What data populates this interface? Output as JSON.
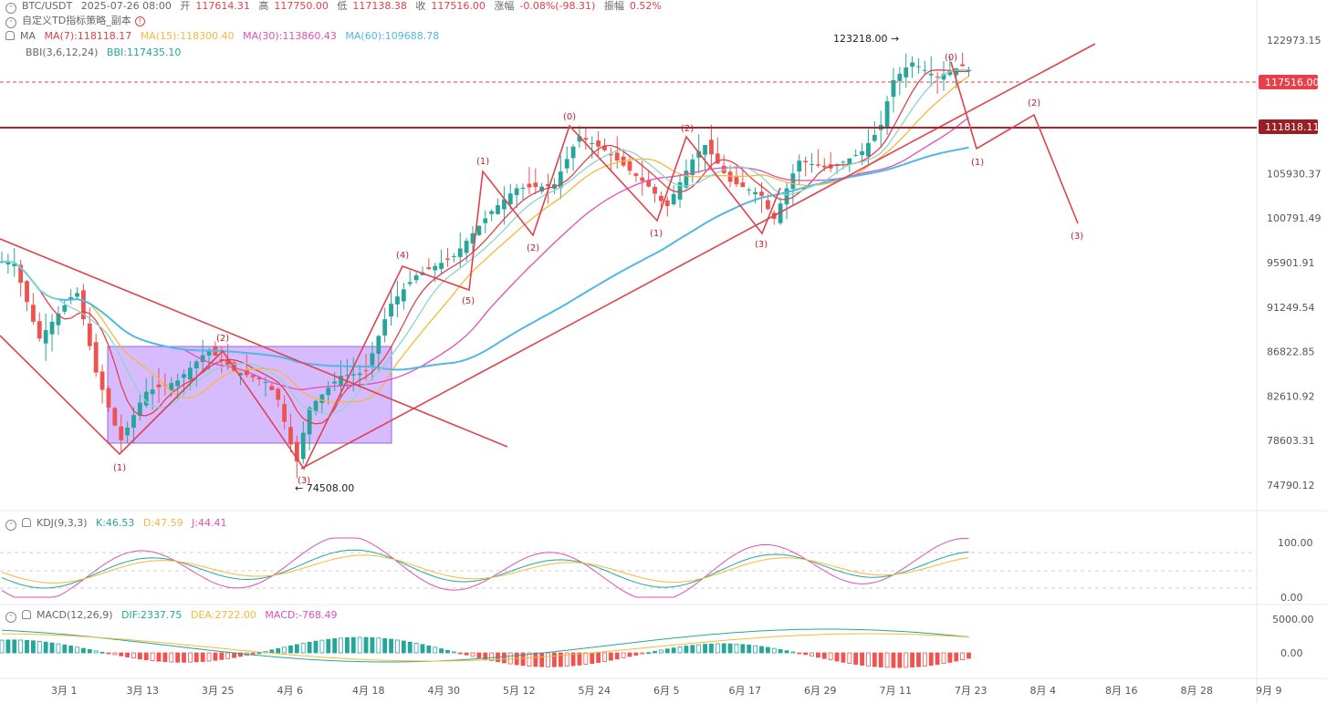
{
  "header": {
    "symbol_line": {
      "symbol": "BTC/USDT",
      "datetime": "2025-07-26 08:00",
      "open_label": "开",
      "open": "117614.31",
      "high_label": "高",
      "high": "117750.00",
      "low_label": "低",
      "low": "117138.38",
      "close_label": "收",
      "close": "117516.00",
      "change_label": "涨幅",
      "change": "-0.08%(-98.31)",
      "amplitude_label": "振幅",
      "amplitude": "0.52%"
    },
    "strategy": "自定义TD指标策略_副本",
    "ma_line": {
      "name": "MA",
      "ma7": "MA(7):118118.17",
      "ma15": "MA(15):118300.40",
      "ma30": "MA(30):113860.43",
      "ma60": "MA(60):109688.78"
    },
    "bbi_line": {
      "params": "BBI(3,6,12,24)",
      "value": "BBI:117435.10"
    }
  },
  "kdj": {
    "name": "KDJ(9,3,3)",
    "k": "K:46.53",
    "d": "D:47.59",
    "j": "J:44.41",
    "ticks": [
      "100.00",
      "0.00"
    ]
  },
  "macd": {
    "name": "MACD(12,26,9)",
    "dif": "DIF:2337.75",
    "dea": "DEA:2722.00",
    "macd": "MACD:-768.49",
    "ticks": [
      "5000.00",
      "0.00"
    ]
  },
  "colors": {
    "up": "#26a69a",
    "down": "#ef5350",
    "ma7": "#e0424b",
    "ma15": "#f5b83a",
    "ma30": "#e04fb5",
    "ma60": "#4fb8e4",
    "bbi": "#8bd6c8",
    "drawing": "#e0424b",
    "box": "#c9a4ff"
  },
  "chart_data": {
    "type": "candlestick",
    "price_ticks": [
      "122973.15",
      "105930.37",
      "100791.49",
      "95901.91",
      "91249.54",
      "86822.85",
      "82610.92",
      "78603.31",
      "74790.12"
    ],
    "current_price_tag": "117516.00",
    "horizontal_line_tag": "111818.11",
    "high_annotation": "123218.00",
    "low_annotation": "74508.00",
    "date_labels": [
      "3月 1",
      "3月 13",
      "3月 25",
      "4月 6",
      "4月 18",
      "4月 30",
      "5月 12",
      "5月 24",
      "6月 5",
      "6月 17",
      "6月 29",
      "7月 11",
      "7月 23",
      "8月 4",
      "8月 16",
      "8月 28",
      "9月 9"
    ],
    "wave_labels": [
      "(1)",
      "(2)",
      "(3)",
      "(4)",
      "(5)",
      "(1)",
      "(2)",
      "(0)",
      "(1)",
      "(2)",
      "(3)",
      "(0)",
      "(1)",
      "(2)",
      "(3)"
    ],
    "price_path": [
      [
        "2025-02-21",
        96000
      ],
      [
        "2025-02-25",
        88000
      ],
      [
        "2025-03-03",
        93000
      ],
      [
        "2025-03-06",
        85000
      ],
      [
        "2025-03-10",
        78500
      ],
      [
        "2025-03-14",
        83000
      ],
      [
        "2025-03-19",
        84000
      ],
      [
        "2025-03-24",
        87000
      ],
      [
        "2025-03-28",
        85000
      ],
      [
        "2025-04-02",
        84000
      ],
      [
        "2025-04-04",
        82500
      ],
      [
        "2025-04-07",
        76500
      ],
      [
        "2025-04-09",
        81500
      ],
      [
        "2025-04-14",
        84500
      ],
      [
        "2025-04-18",
        84800
      ],
      [
        "2025-04-22",
        91500
      ],
      [
        "2025-04-26",
        94500
      ],
      [
        "2025-05-02",
        96500
      ],
      [
        "2025-05-08",
        101500
      ],
      [
        "2025-05-12",
        104200
      ],
      [
        "2025-05-18",
        104500
      ],
      [
        "2025-05-22",
        110500
      ],
      [
        "2025-05-26",
        108800
      ],
      [
        "2025-06-02",
        104500
      ],
      [
        "2025-06-05",
        102000
      ],
      [
        "2025-06-09",
        107500
      ],
      [
        "2025-06-11",
        109500
      ],
      [
        "2025-06-15",
        105000
      ],
      [
        "2025-06-20",
        103500
      ],
      [
        "2025-06-22",
        100500
      ],
      [
        "2025-06-26",
        107500
      ],
      [
        "2025-07-01",
        106500
      ],
      [
        "2025-07-06",
        108500
      ],
      [
        "2025-07-09",
        111500
      ],
      [
        "2025-07-11",
        117500
      ],
      [
        "2025-07-14",
        120000
      ],
      [
        "2025-07-18",
        118000
      ],
      [
        "2025-07-22",
        119500
      ],
      [
        "2025-07-26",
        117516
      ]
    ],
    "series": [
      {
        "name": "MA(7)",
        "last": 118118.17
      },
      {
        "name": "MA(15)",
        "last": 118300.4
      },
      {
        "name": "MA(30)",
        "last": 113860.43
      },
      {
        "name": "MA(60)",
        "last": 109688.78
      },
      {
        "name": "BBI",
        "last": 117435.1
      }
    ],
    "kdj_last": {
      "K": 46.53,
      "D": 47.59,
      "J": 44.41
    },
    "macd_last": {
      "DIF": 2337.75,
      "DEA": 2722.0,
      "MACD": -768.49
    }
  }
}
